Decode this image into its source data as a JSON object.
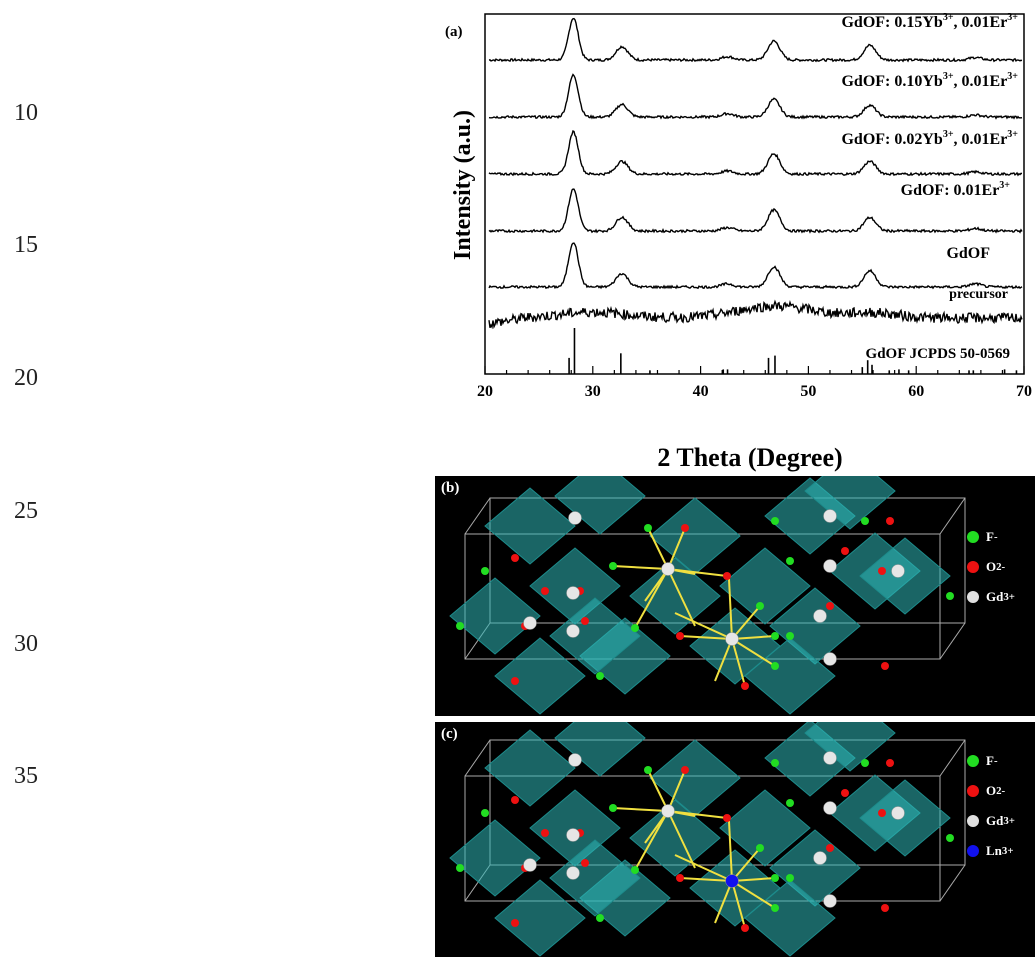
{
  "line_numbers": [
    "10",
    "15",
    "20",
    "25",
    "30",
    "35"
  ],
  "figure_a": {
    "label": "(a)",
    "chart_data": {
      "type": "line",
      "xlabel": "2 Theta (Degree)",
      "ylabel": "Intensity (a.u.)",
      "xlim": [
        20,
        70
      ],
      "xticks": [
        "20",
        "30",
        "40",
        "50",
        "60",
        "70"
      ],
      "peak_positions_deg": [
        28.2,
        32.7,
        42.5,
        46.8,
        55.7,
        65.5
      ],
      "series": [
        {
          "name": "GdOF: 0.15Yb",
          "sup1": "3+",
          "mid": ", 0.01Er",
          "sup2": "3+",
          "peak_heights": [
            1.0,
            0.32,
            0.08,
            0.45,
            0.35,
            0.06
          ]
        },
        {
          "name": "GdOF: 0.10Yb",
          "sup1": "3+",
          "mid": ", 0.01Er",
          "sup2": "3+",
          "peak_heights": [
            1.0,
            0.3,
            0.08,
            0.42,
            0.28,
            0.05
          ]
        },
        {
          "name": "GdOF: 0.02Yb",
          "sup1": "3+",
          "mid": ", 0.01Er",
          "sup2": "3+",
          "peak_heights": [
            1.0,
            0.3,
            0.07,
            0.48,
            0.3,
            0.05
          ]
        },
        {
          "name": "GdOF: 0.01Er",
          "sup1": "3+",
          "mid": "",
          "sup2": "",
          "peak_heights": [
            1.0,
            0.33,
            0.08,
            0.5,
            0.32,
            0.06
          ]
        },
        {
          "name": "GdOF",
          "sup1": "",
          "mid": "",
          "sup2": "",
          "peak_heights": [
            1.0,
            0.3,
            0.07,
            0.45,
            0.36,
            0.07
          ]
        },
        {
          "name": "precursor",
          "sup1": "",
          "mid": "",
          "sup2": "",
          "peak_heights": []
        }
      ],
      "reference": {
        "name": "GdOF JCPDS 50-0569",
        "lines": [
          {
            "x": 27.8,
            "h": 0.35
          },
          {
            "x": 28.3,
            "h": 1.0
          },
          {
            "x": 32.6,
            "h": 0.45
          },
          {
            "x": 35.3,
            "h": 0.08
          },
          {
            "x": 42.1,
            "h": 0.1
          },
          {
            "x": 42.5,
            "h": 0.1
          },
          {
            "x": 46.3,
            "h": 0.35
          },
          {
            "x": 46.9,
            "h": 0.4
          },
          {
            "x": 55.0,
            "h": 0.15
          },
          {
            "x": 55.5,
            "h": 0.3
          },
          {
            "x": 55.9,
            "h": 0.2
          },
          {
            "x": 57.5,
            "h": 0.08
          },
          {
            "x": 58.4,
            "h": 0.1
          },
          {
            "x": 59.3,
            "h": 0.08
          },
          {
            "x": 64.9,
            "h": 0.08
          },
          {
            "x": 65.3,
            "h": 0.08
          },
          {
            "x": 68.2,
            "h": 0.1
          },
          {
            "x": 69.3,
            "h": 0.08
          }
        ]
      }
    }
  },
  "figure_b": {
    "label": "(b)",
    "legend": [
      {
        "label": "F",
        "sup": "-",
        "color": "#22dd22"
      },
      {
        "label": "O",
        "sup": "2-",
        "color": "#ee1111"
      },
      {
        "label": "Gd",
        "sup": "3+",
        "color": "#e0e0e0"
      }
    ]
  },
  "figure_c": {
    "label": "(c)",
    "legend": [
      {
        "label": "F",
        "sup": "-",
        "color": "#22dd22"
      },
      {
        "label": "O",
        "sup": "2-",
        "color": "#ee1111"
      },
      {
        "label": "Gd",
        "sup": "3+",
        "color": "#e0e0e0"
      },
      {
        "label": "Ln",
        "sup": "3+",
        "color": "#1111ee"
      }
    ]
  },
  "colors": {
    "octahedra": "#2fb8b8",
    "bonds": "#f0e040",
    "cell": "#aaaaaa"
  }
}
